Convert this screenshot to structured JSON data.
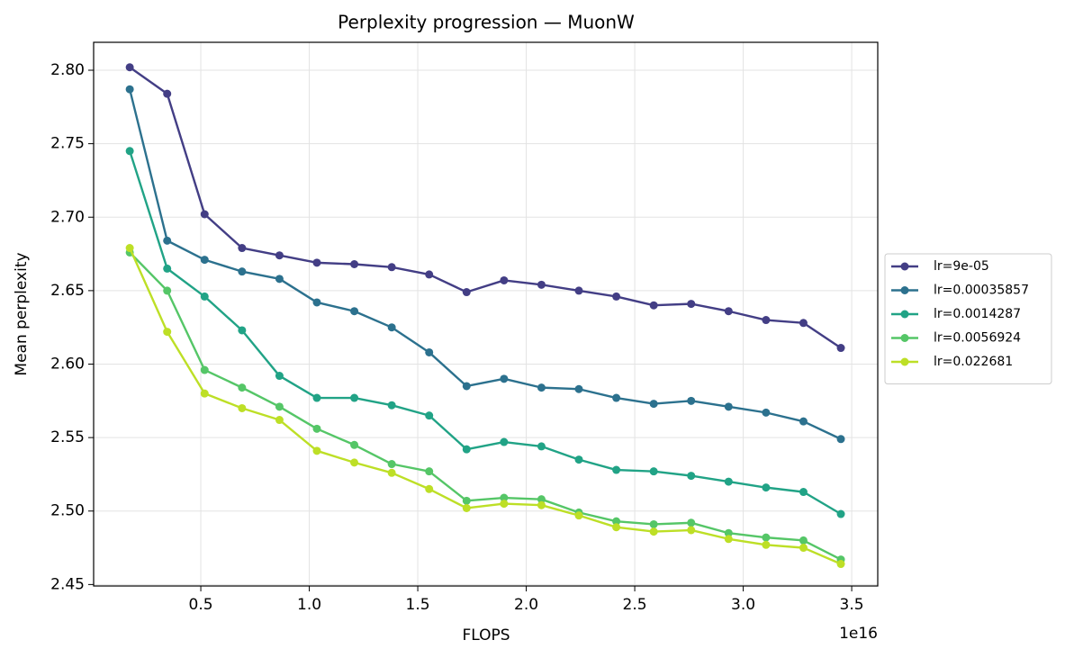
{
  "chart_data": {
    "type": "line",
    "title": "Perplexity progression — MuonW",
    "x_label": "FLOPS",
    "x_offset_label": "1e16",
    "y_label": "Mean perplexity",
    "x": [
      0.1725,
      0.345,
      0.5175,
      0.69,
      0.8625,
      1.035,
      1.2075,
      1.38,
      1.5525,
      1.725,
      1.8975,
      2.07,
      2.2425,
      2.415,
      2.5875,
      2.76,
      2.9325,
      3.105,
      3.2775,
      3.45
    ],
    "series": [
      {
        "name": "lr=9e-05",
        "color": "#433e85",
        "values": [
          2.802,
          2.784,
          2.702,
          2.679,
          2.674,
          2.669,
          2.668,
          2.666,
          2.661,
          2.649,
          2.657,
          2.654,
          2.65,
          2.646,
          2.64,
          2.641,
          2.636,
          2.63,
          2.628,
          2.611
        ]
      },
      {
        "name": "lr=0.00035857",
        "color": "#2c718e",
        "values": [
          2.787,
          2.684,
          2.671,
          2.663,
          2.658,
          2.642,
          2.636,
          2.625,
          2.608,
          2.585,
          2.59,
          2.584,
          2.583,
          2.577,
          2.573,
          2.575,
          2.571,
          2.567,
          2.561,
          2.549
        ]
      },
      {
        "name": "lr=0.0014287",
        "color": "#21a386",
        "values": [
          2.745,
          2.665,
          2.646,
          2.623,
          2.592,
          2.577,
          2.577,
          2.572,
          2.565,
          2.542,
          2.547,
          2.544,
          2.535,
          2.528,
          2.527,
          2.524,
          2.52,
          2.516,
          2.513,
          2.498
        ]
      },
      {
        "name": "lr=0.0056924",
        "color": "#55c667",
        "values": [
          2.676,
          2.65,
          2.596,
          2.584,
          2.571,
          2.556,
          2.545,
          2.532,
          2.527,
          2.507,
          2.509,
          2.508,
          2.499,
          2.493,
          2.491,
          2.492,
          2.485,
          2.482,
          2.48,
          2.467
        ]
      },
      {
        "name": "lr=0.022681",
        "color": "#bddf26",
        "values": [
          2.679,
          2.622,
          2.58,
          2.57,
          2.562,
          2.541,
          2.533,
          2.526,
          2.515,
          2.502,
          2.505,
          2.504,
          2.497,
          2.489,
          2.486,
          2.487,
          2.481,
          2.477,
          2.475,
          2.464
        ]
      }
    ],
    "xlim": [
      0.006,
      3.62
    ],
    "xticks": [
      0.5,
      {
        "value": 1,
        "label": "1.0"
      },
      1.5,
      {
        "value": 2,
        "label": "2.0"
      },
      2.5,
      {
        "value": 3,
        "label": "3.0"
      },
      3.5
    ],
    "ylim": [
      2.449,
      2.819
    ],
    "yticks": [
      2.45,
      {
        "value": 2.5,
        "label": "2.50"
      },
      2.55,
      {
        "value": 2.6,
        "label": "2.60"
      },
      2.65,
      {
        "value": 2.7,
        "label": "2.70"
      },
      2.75,
      {
        "value": 2.8,
        "label": "2.80"
      }
    ],
    "grid": true,
    "legend": "right"
  }
}
